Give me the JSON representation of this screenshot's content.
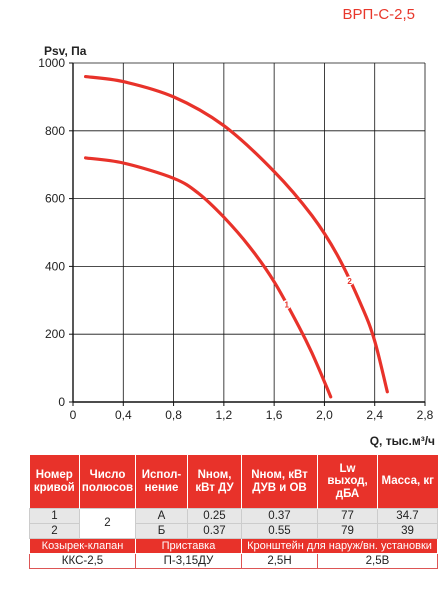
{
  "model": "ВРП-С-2,5",
  "chart_data": {
    "type": "line",
    "ylabel": "Psv, Па",
    "xlabel": "Q, тыс.м³/ч",
    "xlim": [
      0,
      2.8
    ],
    "ylim": [
      0,
      1000
    ],
    "xticks": [
      "0",
      "0,4",
      "0,8",
      "1,2",
      "1,6",
      "2,0",
      "2,4",
      "2,8"
    ],
    "yticks": [
      "0",
      "200",
      "400",
      "600",
      "800",
      "1000"
    ],
    "grid": true,
    "series": [
      {
        "name": "1",
        "color": "#e8322a",
        "x": [
          0.1,
          0.4,
          0.8,
          1.0,
          1.2,
          1.4,
          1.6,
          1.8,
          1.9,
          2.0,
          2.05
        ],
        "y": [
          720,
          705,
          660,
          615,
          545,
          460,
          355,
          220,
          145,
          60,
          15
        ]
      },
      {
        "name": "2",
        "color": "#e8322a",
        "x": [
          0.1,
          0.4,
          0.8,
          1.2,
          1.6,
          1.9,
          2.1,
          2.3,
          2.4,
          2.5
        ],
        "y": [
          960,
          945,
          900,
          815,
          680,
          550,
          435,
          280,
          180,
          30
        ]
      }
    ]
  },
  "table": {
    "headers": [
      "Номер кривой",
      "Число полюсов",
      "Испол-нение",
      "Nном, кВт ДУ",
      "Nном, кВт ДУВ и ОВ",
      "Lw выход, дБА",
      "Масса, кг"
    ],
    "poles": "2",
    "rows": [
      {
        "num": "1",
        "isp": "А",
        "n1": "0.25",
        "n2": "0.37",
        "lw": "77",
        "mass": "34.7"
      },
      {
        "num": "2",
        "isp": "Б",
        "n1": "0.37",
        "n2": "0.55",
        "lw": "79",
        "mass": "39"
      }
    ],
    "accessories": {
      "labels": [
        "Козырек-клапан",
        "Приставка",
        "Кронштейн для наруж/вн. установки"
      ],
      "values": [
        "ККС-2,5",
        "П-3,15ДУ",
        "2,5Н",
        "2,5В"
      ]
    }
  }
}
